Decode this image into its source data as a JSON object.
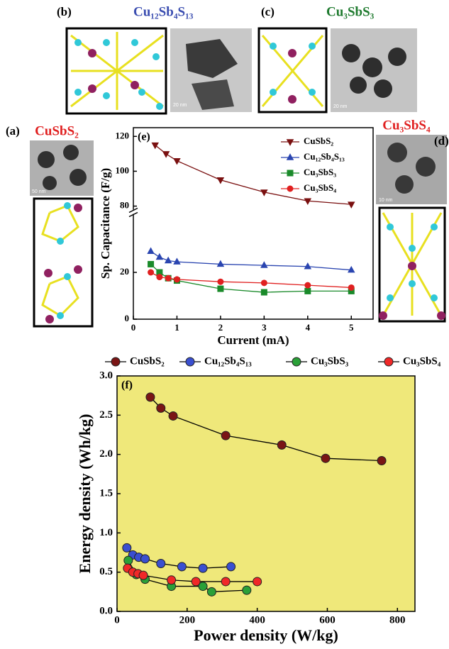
{
  "panels": {
    "b": {
      "label": "(b)",
      "name": "Cu₁₂Sb₄S₁₃",
      "scale": "20 nm"
    },
    "c": {
      "label": "(c)",
      "name": "Cu₃SbS₃",
      "scale": "20 nm"
    },
    "a": {
      "label": "(a)",
      "name": "CuSbS₂",
      "scale": "50 nm"
    },
    "d": {
      "label": "(d)",
      "name": "Cu₃SbS₄",
      "scale": "10 nm"
    }
  },
  "chart_data": [
    {
      "type": "line",
      "title": "(e)",
      "x_label": "Current (mA)",
      "y_label": "Sp. Capacitance (F/g)",
      "xlim": [
        0,
        5.5
      ],
      "xticks": [
        0,
        1,
        2,
        3,
        4,
        5
      ],
      "ylim": [
        0,
        125
      ],
      "ybreak": [
        45,
        78
      ],
      "yticks": [
        0,
        20,
        80,
        100,
        120
      ],
      "legend": "top-right",
      "series": [
        {
          "name": "CuSbS₂",
          "color": "#7a1010",
          "marker": "triangle-down",
          "x": [
            0.5,
            0.75,
            1,
            2,
            3,
            4,
            5
          ],
          "values": [
            115,
            110,
            106,
            95,
            88,
            83,
            81
          ]
        },
        {
          "name": "Cu₁₂Sb₄S₁₃",
          "color": "#2a45b0",
          "marker": "triangle",
          "x": [
            0.4,
            0.6,
            0.8,
            1,
            2,
            3,
            4,
            5
          ],
          "values": [
            29,
            26.5,
            25,
            24.5,
            23.5,
            23,
            22.5,
            21
          ]
        },
        {
          "name": "Cu₃SbS₃",
          "color": "#1a8a2a",
          "marker": "square",
          "x": [
            0.4,
            0.6,
            0.8,
            1,
            2,
            3,
            4,
            5
          ],
          "values": [
            23.5,
            20,
            17.5,
            16.5,
            13,
            11.5,
            12,
            12
          ]
        },
        {
          "name": "Cu₃SbS₄",
          "color": "#e02020",
          "marker": "circle",
          "x": [
            0.4,
            0.6,
            0.8,
            1,
            2,
            3,
            4,
            5
          ],
          "values": [
            20,
            18,
            17.5,
            17,
            16,
            15.5,
            14.5,
            13.5
          ]
        }
      ]
    },
    {
      "type": "line",
      "title": "(f)",
      "x_label": "Power density (W/kg)",
      "y_label": "Energy density (Wh/kg)",
      "xlim": [
        0,
        850
      ],
      "xticks": [
        0,
        200,
        400,
        600,
        800
      ],
      "ylim": [
        0,
        3
      ],
      "yticks": [
        {
          "value": 0,
          "label": "0.0"
        },
        {
          "value": 0.5,
          "label": "0.5"
        },
        {
          "value": 1,
          "label": "1.0"
        },
        {
          "value": 1.5,
          "label": "1.5"
        },
        {
          "value": 2,
          "label": "2.0"
        },
        {
          "value": 2.5,
          "label": "2.5"
        },
        {
          "value": 3,
          "label": "3.0"
        }
      ],
      "background": "#efe87a",
      "legend": "top-outside",
      "series": [
        {
          "name": "CuSbS₂",
          "color": "#7a1515",
          "marker": "circle",
          "x": [
            95,
            125,
            160,
            310,
            470,
            595,
            755
          ],
          "values": [
            2.73,
            2.59,
            2.49,
            2.24,
            2.12,
            1.95,
            1.92
          ]
        },
        {
          "name": "Cu₁₂Sb₄S₁₃",
          "color": "#3a4fd0",
          "marker": "circle",
          "x": [
            28,
            45,
            62,
            80,
            125,
            185,
            245,
            325
          ],
          "values": [
            0.81,
            0.72,
            0.69,
            0.67,
            0.61,
            0.57,
            0.55,
            0.57
          ]
        },
        {
          "name": "Cu₃SbS₃",
          "color": "#2aa038",
          "marker": "circle",
          "x": [
            32,
            55,
            80,
            155,
            245,
            270,
            370
          ],
          "values": [
            0.65,
            0.47,
            0.41,
            0.32,
            0.32,
            0.25,
            0.27
          ]
        },
        {
          "name": "Cu₃SbS₄",
          "color": "#f02828",
          "marker": "circle",
          "x": [
            30,
            45,
            60,
            75,
            155,
            225,
            310,
            400
          ],
          "values": [
            0.55,
            0.5,
            0.48,
            0.46,
            0.4,
            0.38,
            0.38,
            0.38
          ]
        }
      ]
    }
  ]
}
